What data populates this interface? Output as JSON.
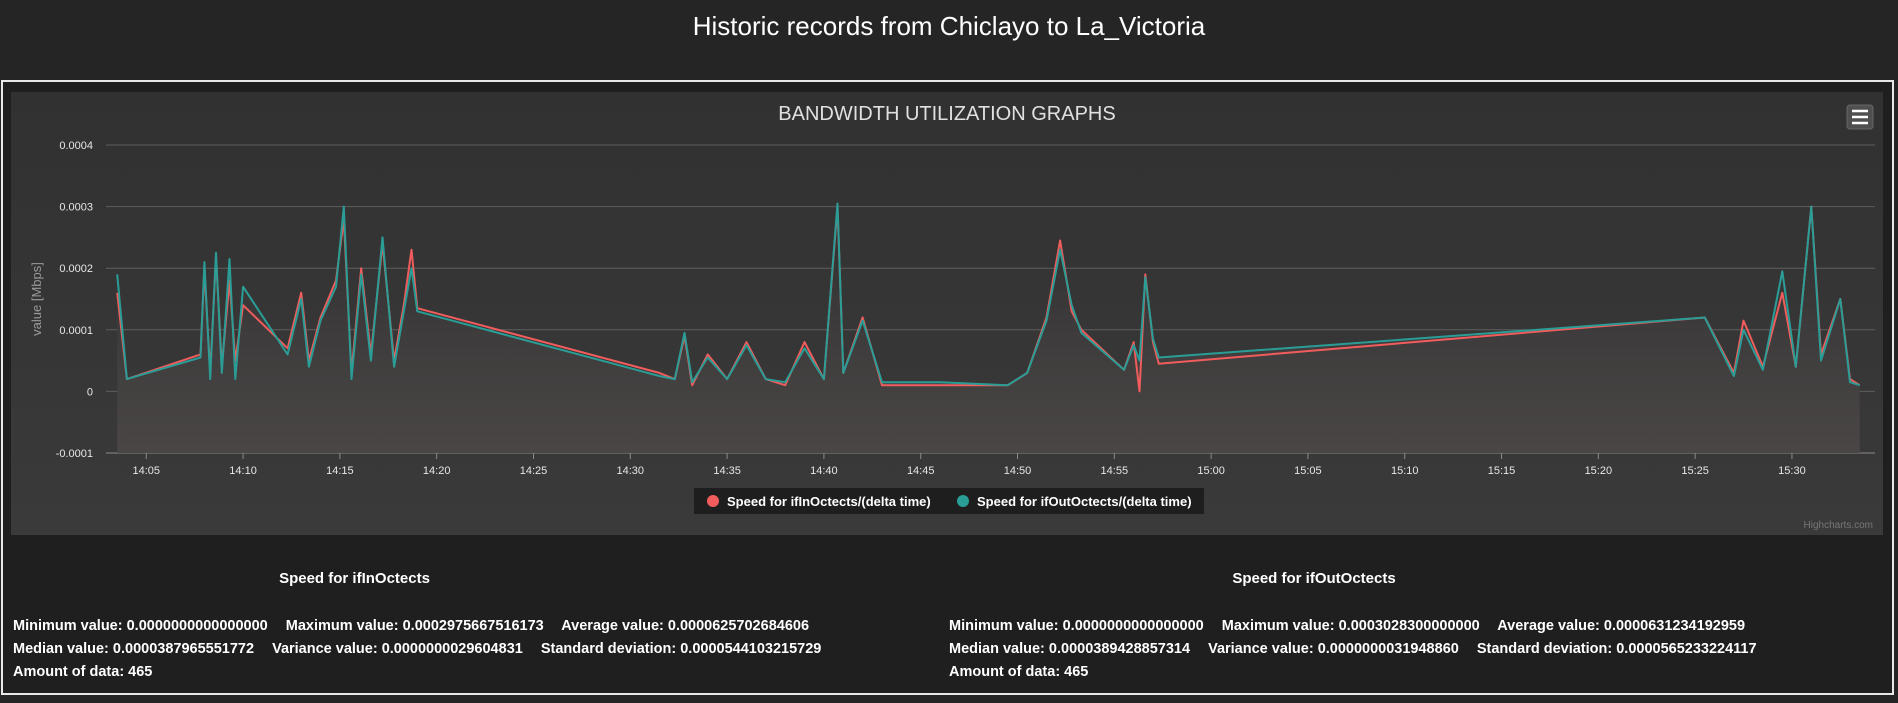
{
  "page": {
    "title": "Historic records from Chiclayo to La_Victoria"
  },
  "chart_menu": {
    "icon": "hamburger-menu-icon"
  },
  "chart_data": {
    "type": "line",
    "title": "BANDWIDTH UTILIZATION GRAPHS",
    "ylabel": "value [Mbps]",
    "xlabel": "",
    "ylim": [
      -0.0001,
      0.0004
    ],
    "xlim": [
      "14:03",
      "15:34"
    ],
    "yticks": [
      "-0.0001",
      "0",
      "0.0001",
      "0.0002",
      "0.0003",
      "0.0004"
    ],
    "xticks": [
      "14:05",
      "14:10",
      "14:15",
      "14:20",
      "14:25",
      "14:30",
      "14:35",
      "14:40",
      "14:45",
      "14:50",
      "14:55",
      "15:00",
      "15:05",
      "15:10",
      "15:15",
      "15:20",
      "15:25",
      "15:30"
    ],
    "grid": true,
    "legend_position": "bottom-center",
    "credits": "Highcharts.com",
    "series": [
      {
        "name": "Speed for ifInOctects/(delta time)",
        "color": "#f15c5c",
        "points": [
          [
            "14:03.5",
            0.00016
          ],
          [
            "14:04.0",
            2e-05
          ],
          [
            "14:07.8",
            6e-05
          ],
          [
            "14:08.0",
            0.0002
          ],
          [
            "14:08.3",
            3e-05
          ],
          [
            "14:08.6",
            0.00022
          ],
          [
            "14:08.9",
            4e-05
          ],
          [
            "14:09.3",
            0.00018
          ],
          [
            "14:09.6",
            5e-05
          ],
          [
            "14:10.0",
            0.00014
          ],
          [
            "14:12.3",
            7e-05
          ],
          [
            "14:13.0",
            0.00016
          ],
          [
            "14:13.4",
            5e-05
          ],
          [
            "14:14.0",
            0.00012
          ],
          [
            "14:14.8",
            0.00018
          ],
          [
            "14:15.2",
            0.00028
          ],
          [
            "14:15.6",
            3e-05
          ],
          [
            "14:16.1",
            0.0002
          ],
          [
            "14:16.6",
            6e-05
          ],
          [
            "14:17.2",
            0.00024
          ],
          [
            "14:17.8",
            5e-05
          ],
          [
            "14:18.3",
            0.00014
          ],
          [
            "14:18.7",
            0.00023
          ],
          [
            "14:19.0",
            0.000135
          ],
          [
            "14:31.5",
            3e-05
          ],
          [
            "14:32.3",
            2e-05
          ],
          [
            "14:32.8",
            9e-05
          ],
          [
            "14:33.2",
            1e-05
          ],
          [
            "14:34.0",
            6e-05
          ],
          [
            "14:35.0",
            2e-05
          ],
          [
            "14:36.0",
            8e-05
          ],
          [
            "14:37.0",
            2e-05
          ],
          [
            "14:38.0",
            1e-05
          ],
          [
            "14:39.0",
            8e-05
          ],
          [
            "14:40.0",
            2e-05
          ],
          [
            "14:40.7",
            0.0003
          ],
          [
            "14:41.0",
            3e-05
          ],
          [
            "14:42.0",
            0.00012
          ],
          [
            "14:43.0",
            1e-05
          ],
          [
            "14:46.0",
            1e-05
          ],
          [
            "14:49.5",
            1e-05
          ],
          [
            "14:50.5",
            3e-05
          ],
          [
            "14:51.5",
            0.00012
          ],
          [
            "14:52.2",
            0.000245
          ],
          [
            "14:52.8",
            0.00013
          ],
          [
            "14:53.3",
            0.0001
          ],
          [
            "14:55.5",
            3.5e-05
          ],
          [
            "14:56.0",
            8e-05
          ],
          [
            "14:56.3",
            0.0
          ],
          [
            "14:56.6",
            0.00019
          ],
          [
            "14:57.0",
            8e-05
          ],
          [
            "14:57.3",
            4.5e-05
          ],
          [
            "15:25.5",
            0.00012
          ],
          [
            "15:27.0",
            3e-05
          ],
          [
            "15:27.5",
            0.000115
          ],
          [
            "15:28.5",
            4e-05
          ],
          [
            "15:29.5",
            0.00016
          ],
          [
            "15:30.2",
            4e-05
          ],
          [
            "15:31.0",
            0.0003
          ],
          [
            "15:31.5",
            6e-05
          ],
          [
            "15:32.5",
            0.00015
          ],
          [
            "15:33.0",
            2e-05
          ],
          [
            "15:33.5",
            1e-05
          ]
        ]
      },
      {
        "name": "Speed for ifOutOctects/(delta time)",
        "color": "#2a9d96",
        "points": [
          [
            "14:03.5",
            0.00019
          ],
          [
            "14:04.0",
            2e-05
          ],
          [
            "14:07.8",
            5.5e-05
          ],
          [
            "14:08.0",
            0.00021
          ],
          [
            "14:08.3",
            2e-05
          ],
          [
            "14:08.6",
            0.000225
          ],
          [
            "14:08.9",
            3e-05
          ],
          [
            "14:09.3",
            0.000215
          ],
          [
            "14:09.6",
            2e-05
          ],
          [
            "14:10.0",
            0.00017
          ],
          [
            "14:12.3",
            6e-05
          ],
          [
            "14:13.0",
            0.00015
          ],
          [
            "14:13.4",
            4e-05
          ],
          [
            "14:14.0",
            0.000115
          ],
          [
            "14:14.8",
            0.00017
          ],
          [
            "14:15.2",
            0.0003
          ],
          [
            "14:15.6",
            2e-05
          ],
          [
            "14:16.1",
            0.00019
          ],
          [
            "14:16.6",
            5e-05
          ],
          [
            "14:17.2",
            0.00025
          ],
          [
            "14:17.8",
            4e-05
          ],
          [
            "14:18.3",
            0.00013
          ],
          [
            "14:18.7",
            0.0002
          ],
          [
            "14:19.0",
            0.00013
          ],
          [
            "14:31.5",
            2.5e-05
          ],
          [
            "14:32.3",
            2e-05
          ],
          [
            "14:32.8",
            9.5e-05
          ],
          [
            "14:33.2",
            1.5e-05
          ],
          [
            "14:34.0",
            5.5e-05
          ],
          [
            "14:35.0",
            2e-05
          ],
          [
            "14:36.0",
            7.5e-05
          ],
          [
            "14:37.0",
            2e-05
          ],
          [
            "14:38.0",
            1.5e-05
          ],
          [
            "14:39.0",
            7e-05
          ],
          [
            "14:40.0",
            2e-05
          ],
          [
            "14:40.7",
            0.000305
          ],
          [
            "14:41.0",
            3e-05
          ],
          [
            "14:42.0",
            0.000115
          ],
          [
            "14:43.0",
            1.5e-05
          ],
          [
            "14:46.0",
            1.5e-05
          ],
          [
            "14:49.5",
            1e-05
          ],
          [
            "14:50.5",
            3e-05
          ],
          [
            "14:51.5",
            0.000115
          ],
          [
            "14:52.2",
            0.00023
          ],
          [
            "14:52.8",
            0.00014
          ],
          [
            "14:53.3",
            9.5e-05
          ],
          [
            "14:55.5",
            3.5e-05
          ],
          [
            "14:56.0",
            7.5e-05
          ],
          [
            "14:56.3",
            5e-05
          ],
          [
            "14:56.6",
            0.000185
          ],
          [
            "14:57.0",
            8.5e-05
          ],
          [
            "14:57.3",
            5.5e-05
          ],
          [
            "15:25.5",
            0.00012
          ],
          [
            "15:27.0",
            2.5e-05
          ],
          [
            "15:27.5",
            0.0001
          ],
          [
            "15:28.5",
            3.5e-05
          ],
          [
            "15:29.5",
            0.000195
          ],
          [
            "15:30.2",
            4e-05
          ],
          [
            "15:31.0",
            0.0003
          ],
          [
            "15:31.5",
            5e-05
          ],
          [
            "15:32.5",
            0.00015
          ],
          [
            "15:33.0",
            1.5e-05
          ],
          [
            "15:33.5",
            1e-05
          ]
        ]
      }
    ]
  },
  "stats": {
    "in": {
      "title": "Speed for ifInOctects",
      "min": "Minimum value: 0.0000000000000000",
      "max": "Maximum value: 0.0002975667516173",
      "avg": "Average value: 0.0000625702684606",
      "median": "Median value: 0.0000387965551772",
      "variance": "Variance value: 0.0000000029604831",
      "stddev": "Standard deviation: 0.0000544103215729",
      "amount": "Amount of data: 465"
    },
    "out": {
      "title": "Speed for ifOutOctects",
      "min": "Minimum value: 0.0000000000000000",
      "max": "Maximum value: 0.0003028300000000",
      "avg": "Average value: 0.0000631234192959",
      "median": "Median value: 0.0000389428857314",
      "variance": "Variance value: 0.0000000031948860",
      "stddev": "Standard deviation: 0.0000565233224117",
      "amount": "Amount of data: 465"
    }
  }
}
